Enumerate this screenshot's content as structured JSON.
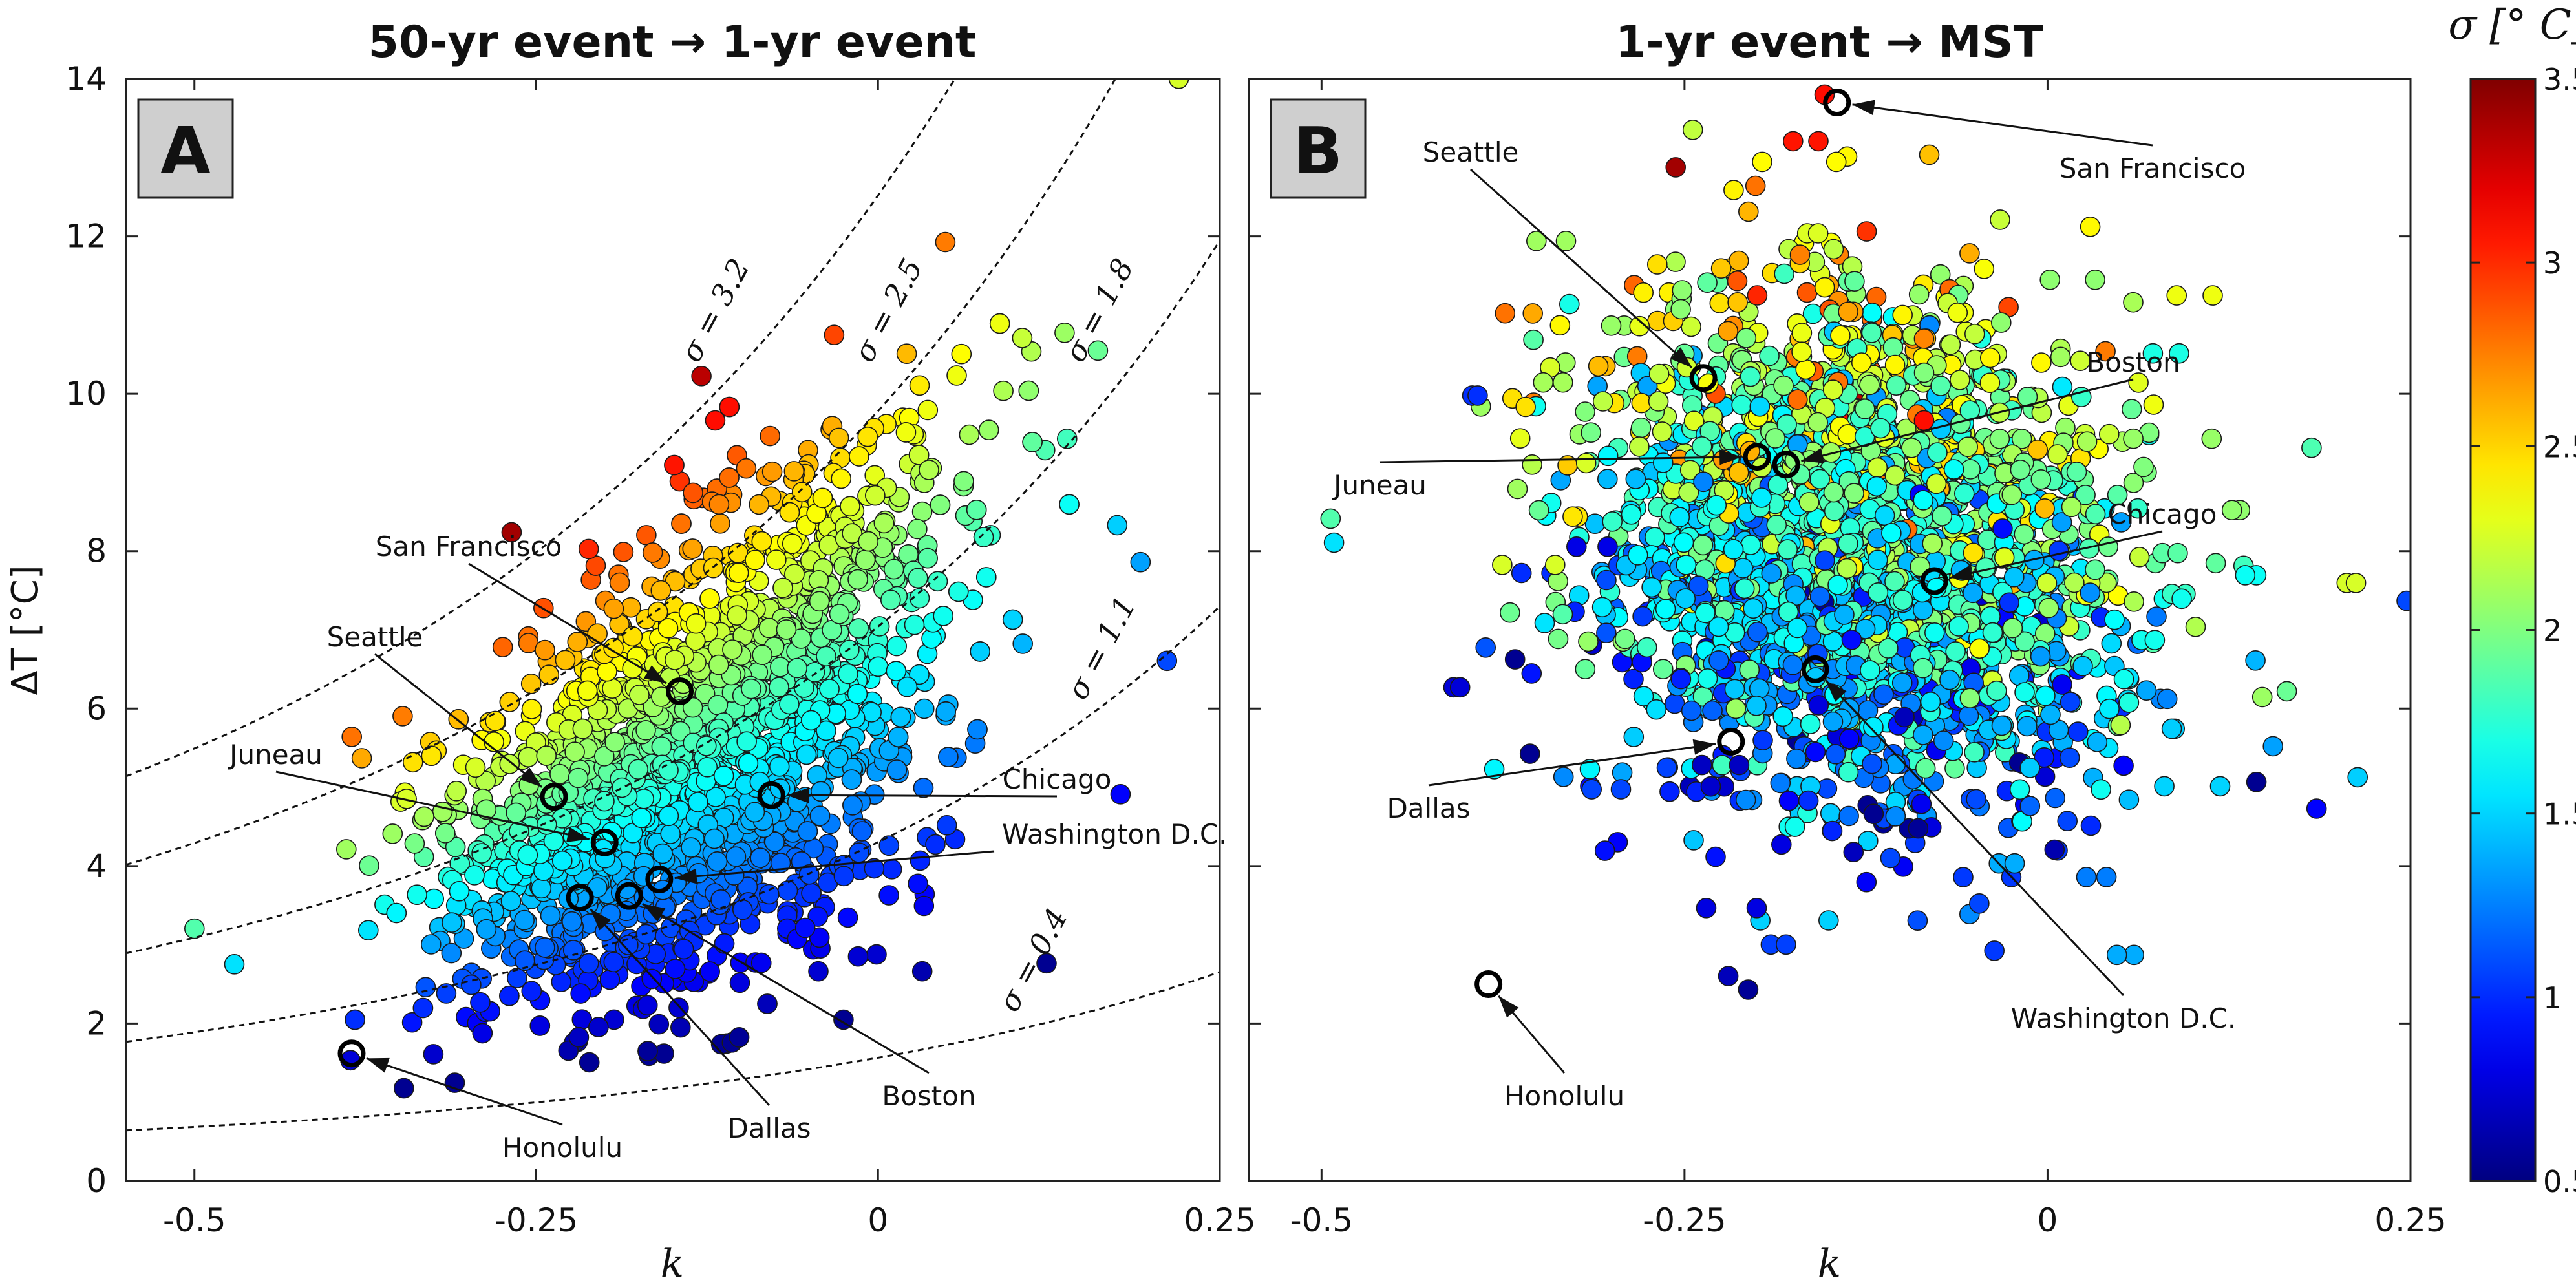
{
  "chart_data": [
    {
      "type": "scatter",
      "panel_label": "A",
      "title": "50-yr event → 1-yr event",
      "xlabel": "k",
      "ylabel": "ΔT [°C]",
      "xlim": [
        -0.55,
        0.25
      ],
      "ylim": [
        0,
        14
      ],
      "xticks": [
        -0.5,
        -0.25,
        0,
        0.25
      ],
      "xtick_labels": [
        "-0.5",
        "-0.25",
        "0",
        "0.25"
      ],
      "yticks": [
        0,
        2,
        4,
        6,
        8,
        10,
        12,
        14
      ],
      "ytick_labels": [
        "0",
        "2",
        "4",
        "6",
        "8",
        "10",
        "12",
        "14"
      ],
      "grid": false,
      "iso_sigma_curves": [
        {
          "label": "σ = 3.2",
          "sigma": 3.2
        },
        {
          "label": "σ = 2.5",
          "sigma": 2.5
        },
        {
          "label": "σ = 1.8",
          "sigma": 1.8
        },
        {
          "label": "σ = 1.1",
          "sigma": 1.1
        },
        {
          "label": "σ = 0.4",
          "sigma": 0.4
        }
      ],
      "cities": [
        {
          "name": "San Francisco",
          "k": -0.145,
          "dT": 6.22
        },
        {
          "name": "Seattle",
          "k": -0.237,
          "dT": 4.88
        },
        {
          "name": "Juneau",
          "k": -0.2,
          "dT": 4.3
        },
        {
          "name": "Chicago",
          "k": -0.078,
          "dT": 4.9
        },
        {
          "name": "Washington D.C.",
          "k": -0.16,
          "dT": 3.83
        },
        {
          "name": "Dallas",
          "k": -0.218,
          "dT": 3.6
        },
        {
          "name": "Boston",
          "k": -0.182,
          "dT": 3.62
        },
        {
          "name": "Honolulu",
          "k": -0.385,
          "dT": 1.62
        }
      ]
    },
    {
      "type": "scatter",
      "panel_label": "B",
      "title": "1-yr event → MST",
      "xlabel": "k",
      "xlim": [
        -0.55,
        0.25
      ],
      "ylim": [
        0,
        14
      ],
      "xticks": [
        -0.5,
        -0.25,
        0,
        0.25
      ],
      "xtick_labels": [
        "-0.5",
        "-0.25",
        "0",
        "0.25"
      ],
      "grid": false,
      "cities": [
        {
          "name": "San Francisco",
          "k": -0.145,
          "dT": 13.7
        },
        {
          "name": "Seattle",
          "k": -0.237,
          "dT": 10.2
        },
        {
          "name": "Boston",
          "k": -0.18,
          "dT": 9.1
        },
        {
          "name": "Juneau",
          "k": -0.2,
          "dT": 9.2
        },
        {
          "name": "Chicago",
          "k": -0.078,
          "dT": 7.62
        },
        {
          "name": "Washington D.C.",
          "k": -0.16,
          "dT": 6.5
        },
        {
          "name": "Dallas",
          "k": -0.218,
          "dT": 5.58
        },
        {
          "name": "Honolulu",
          "k": -0.385,
          "dT": 2.5
        }
      ]
    }
  ],
  "colorbar": {
    "label": "σ [° C]",
    "min": 0.5,
    "max": 3.5,
    "ticks": [
      0.5,
      1,
      1.5,
      2,
      2.5,
      3,
      3.5
    ],
    "tick_labels": [
      "0.5",
      "1",
      "1.5",
      "2",
      "2.5",
      "3",
      "3.5"
    ],
    "colormap": "jet"
  }
}
